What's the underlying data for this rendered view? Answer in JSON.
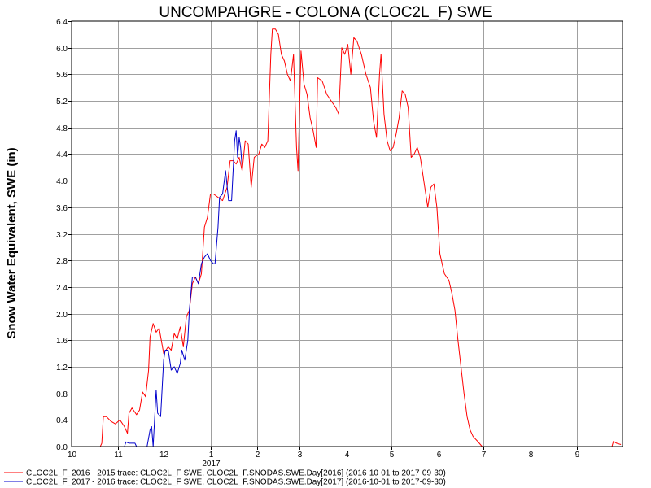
{
  "chart_data": {
    "type": "line",
    "title": "UNCOMPAHGRE - COLONA (CLOC2L_F) SWE",
    "xlabel": "",
    "ylabel": "Snow Water Equivalent, SWE (in)",
    "ylim": [
      0,
      6.4
    ],
    "xlim": [
      "2016-10-01",
      "2017-09-30"
    ],
    "x_ticks": [
      "10",
      "11",
      "12",
      "1",
      "2",
      "3",
      "4",
      "5",
      "6",
      "7",
      "8",
      "9"
    ],
    "x_year_label": "2017",
    "y_ticks": [
      "0.0",
      "0.4",
      "0.8",
      "1.2",
      "1.6",
      "2.0",
      "2.4",
      "2.8",
      "3.2",
      "3.6",
      "4.0",
      "4.4",
      "4.8",
      "5.2",
      "5.6",
      "6.0",
      "6.4"
    ],
    "grid": true,
    "legend_position": "bottom",
    "series": [
      {
        "name": "CLOC2L_F_2016 - 2015 trace: CLOC2L_F SWE, CLOC2L_F.SNODAS.SWE.Day[2016] (2016-10-01 to 2017-09-30)",
        "color": "#ff0000",
        "points": [
          [
            "2016-10-01",
            0
          ],
          [
            "2016-10-20",
            0
          ],
          [
            "2016-10-21",
            0.05
          ],
          [
            "2016-10-22",
            0.45
          ],
          [
            "2016-10-24",
            0.45
          ],
          [
            "2016-10-27",
            0.38
          ],
          [
            "2016-10-30",
            0.34
          ],
          [
            "2016-11-02",
            0.4
          ],
          [
            "2016-11-05",
            0.3
          ],
          [
            "2016-11-07",
            0.2
          ],
          [
            "2016-11-08",
            0.5
          ],
          [
            "2016-11-10",
            0.58
          ],
          [
            "2016-11-13",
            0.48
          ],
          [
            "2016-11-15",
            0.55
          ],
          [
            "2016-11-17",
            0.82
          ],
          [
            "2016-11-19",
            0.75
          ],
          [
            "2016-11-21",
            1.15
          ],
          [
            "2016-11-22",
            1.65
          ],
          [
            "2016-11-24",
            1.85
          ],
          [
            "2016-11-26",
            1.72
          ],
          [
            "2016-11-28",
            1.78
          ],
          [
            "2016-12-01",
            1.4
          ],
          [
            "2016-12-04",
            1.5
          ],
          [
            "2016-12-06",
            1.45
          ],
          [
            "2016-12-08",
            1.7
          ],
          [
            "2016-12-10",
            1.62
          ],
          [
            "2016-12-12",
            1.8
          ],
          [
            "2016-12-14",
            1.5
          ],
          [
            "2016-12-16",
            1.95
          ],
          [
            "2016-12-18",
            2.05
          ],
          [
            "2016-12-20",
            2.45
          ],
          [
            "2016-12-22",
            2.55
          ],
          [
            "2016-12-24",
            2.45
          ],
          [
            "2016-12-26",
            2.6
          ],
          [
            "2016-12-28",
            3.3
          ],
          [
            "2016-12-30",
            3.45
          ],
          [
            "2017-01-01",
            3.8
          ],
          [
            "2017-01-03",
            3.8
          ],
          [
            "2017-01-06",
            3.75
          ],
          [
            "2017-01-09",
            3.7
          ],
          [
            "2017-01-12",
            3.9
          ],
          [
            "2017-01-14",
            4.3
          ],
          [
            "2017-01-16",
            4.3
          ],
          [
            "2017-01-18",
            4.25
          ],
          [
            "2017-01-20",
            4.35
          ],
          [
            "2017-01-22",
            4.15
          ],
          [
            "2017-01-24",
            4.6
          ],
          [
            "2017-01-26",
            4.55
          ],
          [
            "2017-01-28",
            3.9
          ],
          [
            "2017-01-30",
            4.35
          ],
          [
            "2017-02-02",
            4.4
          ],
          [
            "2017-02-04",
            4.55
          ],
          [
            "2017-02-06",
            4.5
          ],
          [
            "2017-02-08",
            4.6
          ],
          [
            "2017-02-10",
            5.9
          ],
          [
            "2017-02-11",
            6.28
          ],
          [
            "2017-02-13",
            6.28
          ],
          [
            "2017-02-15",
            6.2
          ],
          [
            "2017-02-17",
            5.9
          ],
          [
            "2017-02-19",
            5.8
          ],
          [
            "2017-02-21",
            5.6
          ],
          [
            "2017-02-23",
            5.5
          ],
          [
            "2017-02-25",
            5.9
          ],
          [
            "2017-02-27",
            4.5
          ],
          [
            "2017-02-28",
            4.15
          ],
          [
            "2017-03-02",
            5.95
          ],
          [
            "2017-03-04",
            5.45
          ],
          [
            "2017-03-06",
            5.3
          ],
          [
            "2017-03-08",
            4.95
          ],
          [
            "2017-03-10",
            4.75
          ],
          [
            "2017-03-12",
            4.5
          ],
          [
            "2017-03-13",
            5.55
          ],
          [
            "2017-03-16",
            5.5
          ],
          [
            "2017-03-19",
            5.3
          ],
          [
            "2017-03-22",
            5.2
          ],
          [
            "2017-03-25",
            5.1
          ],
          [
            "2017-03-27",
            5.0
          ],
          [
            "2017-03-29",
            6.0
          ],
          [
            "2017-03-31",
            5.9
          ],
          [
            "2017-04-02",
            6.05
          ],
          [
            "2017-04-04",
            5.6
          ],
          [
            "2017-04-06",
            6.15
          ],
          [
            "2017-04-08",
            6.1
          ],
          [
            "2017-04-11",
            5.9
          ],
          [
            "2017-04-14",
            5.6
          ],
          [
            "2017-04-17",
            5.4
          ],
          [
            "2017-04-19",
            4.9
          ],
          [
            "2017-04-21",
            4.65
          ],
          [
            "2017-04-23",
            5.6
          ],
          [
            "2017-04-24",
            5.9
          ],
          [
            "2017-04-26",
            5.0
          ],
          [
            "2017-04-28",
            4.6
          ],
          [
            "2017-04-30",
            4.45
          ],
          [
            "2017-05-02",
            4.5
          ],
          [
            "2017-05-04",
            4.7
          ],
          [
            "2017-05-06",
            4.95
          ],
          [
            "2017-05-08",
            5.35
          ],
          [
            "2017-05-10",
            5.3
          ],
          [
            "2017-05-12",
            5.1
          ],
          [
            "2017-05-14",
            4.35
          ],
          [
            "2017-05-16",
            4.4
          ],
          [
            "2017-05-18",
            4.5
          ],
          [
            "2017-05-20",
            4.35
          ],
          [
            "2017-05-23",
            3.9
          ],
          [
            "2017-05-25",
            3.6
          ],
          [
            "2017-05-27",
            3.9
          ],
          [
            "2017-05-29",
            3.95
          ],
          [
            "2017-05-31",
            3.6
          ],
          [
            "2017-06-02",
            2.9
          ],
          [
            "2017-06-05",
            2.6
          ],
          [
            "2017-06-08",
            2.5
          ],
          [
            "2017-06-10",
            2.3
          ],
          [
            "2017-06-12",
            2.05
          ],
          [
            "2017-06-14",
            1.6
          ],
          [
            "2017-06-16",
            1.2
          ],
          [
            "2017-06-18",
            0.8
          ],
          [
            "2017-06-20",
            0.45
          ],
          [
            "2017-06-22",
            0.25
          ],
          [
            "2017-06-24",
            0.15
          ],
          [
            "2017-06-27",
            0.08
          ],
          [
            "2017-06-30",
            0.0
          ],
          [
            "2017-09-24",
            0.0
          ],
          [
            "2017-09-25",
            0.08
          ],
          [
            "2017-09-27",
            0.05
          ],
          [
            "2017-09-30",
            0.03
          ]
        ]
      },
      {
        "name": "CLOC2L_F_2017 - 2016 trace: CLOC2L_F SWE, CLOC2L_F.SNODAS.SWE.Day[2017] (2016-10-01 to 2017-09-30)",
        "color": "#0000cc",
        "points": [
          [
            "2016-11-05",
            0.0
          ],
          [
            "2016-11-06",
            0.07
          ],
          [
            "2016-11-08",
            0.05
          ],
          [
            "2016-11-12",
            0.05
          ],
          [
            "2016-11-13",
            0.0
          ],
          [
            "2016-11-20",
            0.0
          ],
          [
            "2016-11-22",
            0.25
          ],
          [
            "2016-11-23",
            0.3
          ],
          [
            "2016-11-24",
            0.0
          ],
          [
            "2016-11-26",
            0.85
          ],
          [
            "2016-11-27",
            0.5
          ],
          [
            "2016-11-29",
            0.45
          ],
          [
            "2016-12-01",
            1.3
          ],
          [
            "2016-12-02",
            1.45
          ],
          [
            "2016-12-04",
            1.45
          ],
          [
            "2016-12-06",
            1.15
          ],
          [
            "2016-12-08",
            1.2
          ],
          [
            "2016-12-10",
            1.1
          ],
          [
            "2016-12-12",
            1.25
          ],
          [
            "2016-12-13",
            1.45
          ],
          [
            "2016-12-15",
            1.3
          ],
          [
            "2016-12-17",
            1.6
          ],
          [
            "2016-12-18",
            2.05
          ],
          [
            "2016-12-20",
            2.55
          ],
          [
            "2016-12-22",
            2.55
          ],
          [
            "2016-12-24",
            2.45
          ],
          [
            "2016-12-26",
            2.75
          ],
          [
            "2016-12-28",
            2.85
          ],
          [
            "2016-12-30",
            2.9
          ],
          [
            "2017-01-01",
            2.8
          ],
          [
            "2017-01-03",
            2.75
          ],
          [
            "2017-01-04",
            2.75
          ],
          [
            "2017-01-06",
            3.3
          ],
          [
            "2017-01-07",
            3.75
          ],
          [
            "2017-01-09",
            3.8
          ],
          [
            "2017-01-11",
            4.15
          ],
          [
            "2017-01-13",
            3.7
          ],
          [
            "2017-01-15",
            3.7
          ],
          [
            "2017-01-17",
            4.6
          ],
          [
            "2017-01-18",
            4.75
          ],
          [
            "2017-01-19",
            4.35
          ],
          [
            "2017-01-20",
            4.65
          ],
          [
            "2017-01-21",
            4.5
          ],
          [
            "2017-01-22",
            4.2
          ]
        ]
      }
    ]
  }
}
